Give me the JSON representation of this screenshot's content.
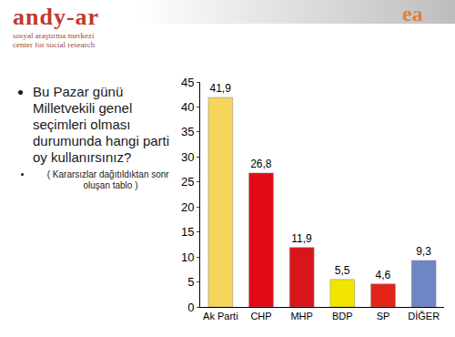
{
  "header": {
    "name": "andy-ar",
    "line1": "sosyal araştırma merkezi",
    "line2": "center for social research",
    "mark": "ea"
  },
  "chart_data": {
    "type": "bar",
    "title": "Bu Pazar günü Milletvekili genel seçimleri olması durumunda hangi partiye oy kullanırsınız?",
    "subtitle": "( Kararsızlar dağıtıldıktan sonra oluşan tablo )",
    "categories": [
      "Ak Parti",
      "CHP",
      "MHP",
      "BDP",
      "SP",
      "DİĞER"
    ],
    "values": [
      41.9,
      26.8,
      11.9,
      5.5,
      4.6,
      9.3
    ],
    "value_labels": [
      "41,9",
      "26,8",
      "11,9",
      "5,5",
      "4,6",
      "9,3"
    ],
    "colors": [
      "#f6d55c",
      "#e30a17",
      "#d9151c",
      "#f2e600",
      "#e2231a",
      "#6f86c4"
    ],
    "ylim": [
      0,
      45
    ],
    "yticks": [
      0,
      5,
      10,
      15,
      20,
      25,
      30,
      35,
      40,
      45
    ],
    "grid": false,
    "data_labels": true
  }
}
